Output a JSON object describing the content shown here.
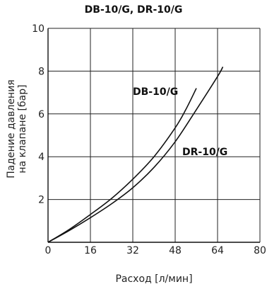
{
  "chart_data": {
    "type": "line",
    "title": "DB-10/G, DR-10/G",
    "xlabel": "Расход [л/мин]",
    "ylabel_line1": "Падение давления",
    "ylabel_line2": "на клапане [бар]",
    "xlim": [
      0,
      80
    ],
    "ylim": [
      0,
      10
    ],
    "x_ticks": [
      "0",
      "16",
      "32",
      "48",
      "64",
      "80"
    ],
    "y_ticks": [
      "2",
      "4",
      "6",
      "8",
      "10"
    ],
    "grid": true,
    "series": [
      {
        "name": "DB-10/G",
        "x": [
          0,
          8,
          16,
          24,
          32,
          40,
          48,
          52,
          56
        ],
        "y": [
          0,
          0.6,
          1.3,
          2.05,
          2.95,
          4.0,
          5.35,
          6.2,
          7.2
        ]
      },
      {
        "name": "DR-10/G",
        "x": [
          0,
          8,
          16,
          24,
          32,
          40,
          48,
          56,
          64,
          66
        ],
        "y": [
          0,
          0.55,
          1.15,
          1.8,
          2.55,
          3.5,
          4.7,
          6.2,
          7.75,
          8.2
        ]
      }
    ]
  }
}
